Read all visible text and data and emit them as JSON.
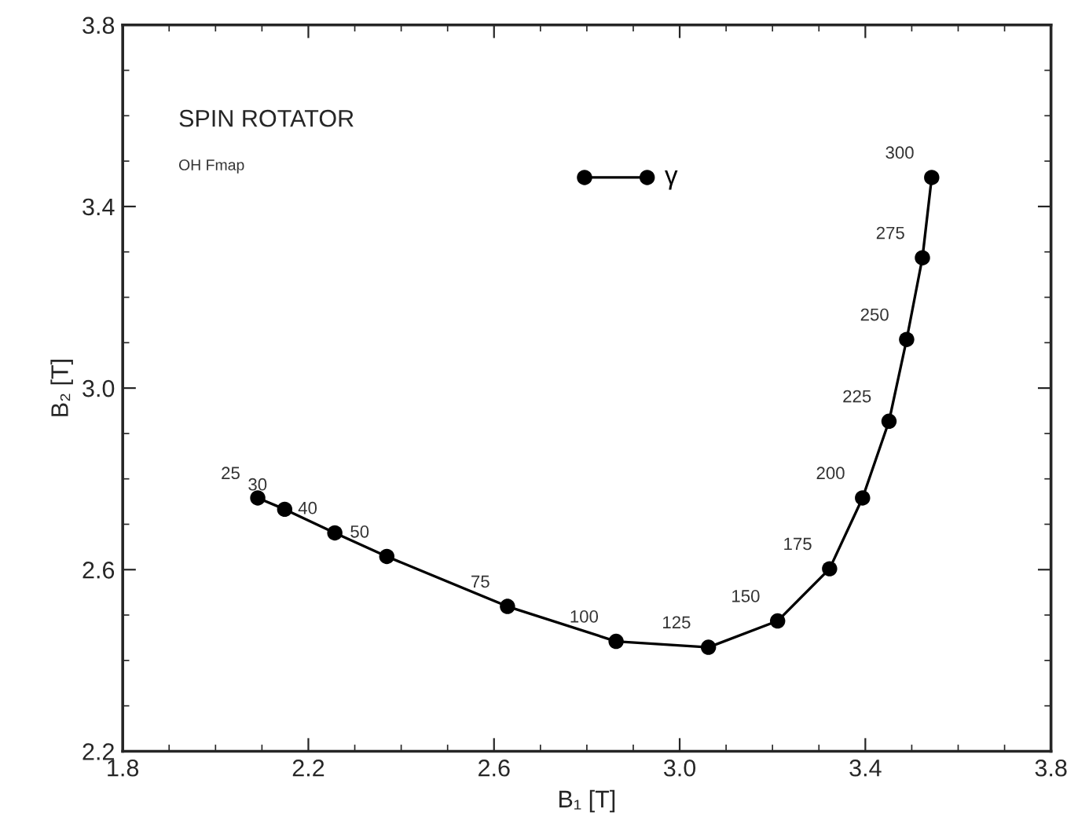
{
  "chart_data": {
    "type": "line",
    "title": "SPIN ROTATOR",
    "subtitle": "OH Fmap",
    "xlabel": "B₁ [T]",
    "ylabel": "B₂ [T]",
    "series": [
      {
        "color": "#000000",
        "x": [
          2.091,
          2.149,
          2.257,
          2.369,
          2.629,
          2.863,
          3.062,
          3.211,
          3.323,
          3.394,
          3.451,
          3.489,
          3.523,
          3.543
        ],
        "values": [
          2.758,
          2.733,
          2.681,
          2.629,
          2.519,
          2.442,
          2.429,
          2.487,
          2.602,
          2.758,
          2.927,
          3.107,
          3.287,
          3.464
        ]
      },
      {
        "name": "γ",
        "color": "#000000",
        "x": [
          2.795,
          2.93
        ],
        "values": [
          3.464,
          3.464
        ]
      }
    ],
    "annotations": [
      {
        "text": "25",
        "x": 2.091,
        "y": 2.758
      },
      {
        "text": "30",
        "x": 2.149,
        "y": 2.733
      },
      {
        "text": "40",
        "x": 2.257,
        "y": 2.681
      },
      {
        "text": "50",
        "x": 2.369,
        "y": 2.629
      },
      {
        "text": "75",
        "x": 2.629,
        "y": 2.519
      },
      {
        "text": "100",
        "x": 2.863,
        "y": 2.442
      },
      {
        "text": "125",
        "x": 3.062,
        "y": 2.429
      },
      {
        "text": "150",
        "x": 3.211,
        "y": 2.487
      },
      {
        "text": "175",
        "x": 3.323,
        "y": 2.602
      },
      {
        "text": "200",
        "x": 3.394,
        "y": 2.758
      },
      {
        "text": "225",
        "x": 3.451,
        "y": 2.927
      },
      {
        "text": "250",
        "x": 3.489,
        "y": 3.107
      },
      {
        "text": "275",
        "x": 3.523,
        "y": 3.287
      },
      {
        "text": "300",
        "x": 3.543,
        "y": 3.464
      }
    ],
    "xlim": [
      1.8,
      3.8
    ],
    "xticks": [
      "1.8",
      2.2,
      2.6,
      "3.0",
      3.4,
      3.8
    ],
    "ylim": [
      2.2,
      3.8
    ],
    "yticks": [
      2.2,
      2.6,
      "3.0",
      3.4,
      3.8
    ],
    "marker": "circle",
    "line_style": "solid",
    "grid": false,
    "legend": false
  }
}
